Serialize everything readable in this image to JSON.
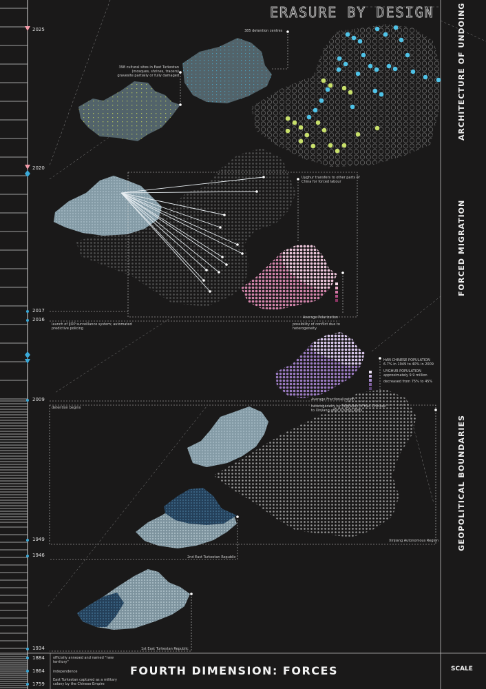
{
  "title": "ERASURE BY DESIGN",
  "footer_title": "FOURTH DIMENSION: FORCES",
  "scale_label": "SCALE",
  "sections": {
    "architecture": "ARCHITECTURE OF UNDOING",
    "migration": "FORCED MIGRATION",
    "boundaries": "GEOPOLITICAL BOUNDARIES"
  },
  "timeline": {
    "years": [
      "2025",
      "2020",
      "2017",
      "2016",
      "2009",
      "1949",
      "1946",
      "1934",
      "1884",
      "1864",
      "1759"
    ]
  },
  "annotations": {
    "detention_centres": "385 detention centres",
    "cultural_sites": "398 cultural sites in East Turkestan (mosques, shrines, tracers) gravesite partially or fully damaged",
    "uyghur_transfers": "Uyghur transfers to other parts of China for forced labour",
    "avg_polarization": "Average Polarization",
    "ijop": "launch of IJOP surveillance system; automated predictive policing",
    "conflict": "possibility of conflict due to heterogeneity",
    "han_pop": "HAN CHINESE POPULATION",
    "han_pop_detail": "6.7% in 1949 to 40% in 2009",
    "uyghur_pop": "UYGHUR POPULATION",
    "uyghur_pop_detail": "approximately 9.9 million",
    "uyghur_pop_decrease": "decreased from 75% to 45%",
    "avg_fractionalization": "Average Fractionalization",
    "detention_begins": "detention begins",
    "heterogeneity": "heterogeneity by migration of Han Chinese to Xinjiang after Urumqi Riots",
    "xinjiang": "Xinjiang Autonomous Region",
    "east_turkestan_2": "2nd East Turkestan Republic",
    "east_turkestan_1": "1st East Turkestan Republic",
    "annexed": "officially annexed and named \"new territory\"",
    "independence": "independence",
    "military_colony": "East Turkestan captured as a military colony by the Chinese Empire"
  },
  "colors": {
    "background": "#1a1919",
    "cyan": "#4fc3e8",
    "lime": "#c8e06a",
    "pink": "#e0699a",
    "violet": "#b79be0",
    "slate": "#8fa7b3",
    "navy": "#2e4f6b",
    "marker_pink": "#f29aa8",
    "marker_blue": "#3aa9d8"
  }
}
